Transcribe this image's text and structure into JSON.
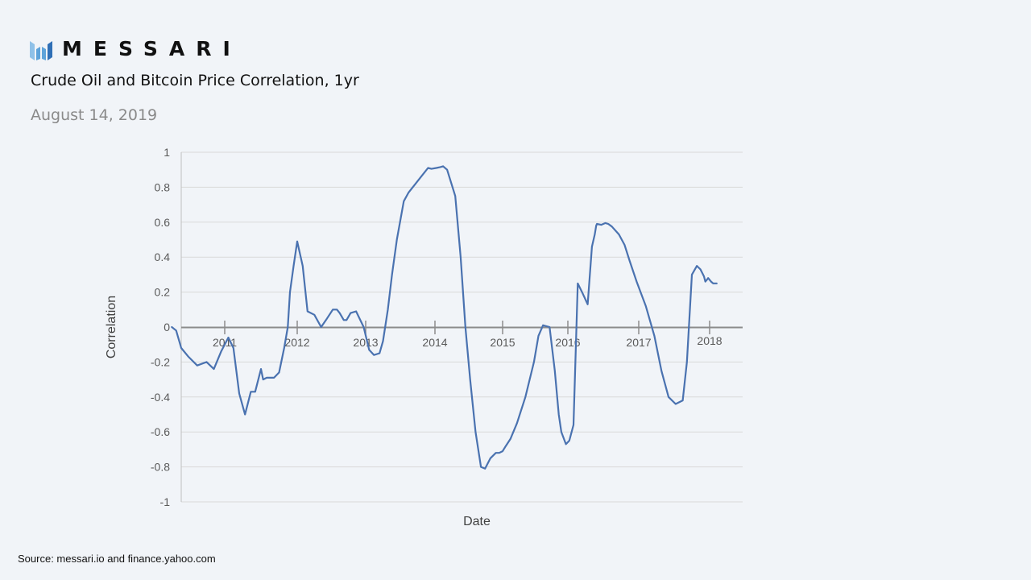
{
  "brand": {
    "name": "MESSARI",
    "logo_icon": "messari-m-logo-icon",
    "colors": [
      "#8fc1e8",
      "#5ea3da",
      "#2f6fb6"
    ]
  },
  "header": {
    "title": "Crude Oil and Bitcoin Price Correlation, 1yr",
    "date": "August 14, 2019"
  },
  "footer": {
    "source": "Source: messari.io and finance.yahoo.com"
  },
  "chart_data": {
    "type": "line",
    "title": "Crude Oil and Bitcoin Price Correlation, 1yr",
    "xlabel": "Date",
    "ylabel": "Correlation",
    "ylim": [
      -1,
      1
    ],
    "yticks": [
      1,
      0.8,
      0.6,
      0.4,
      0.2,
      0,
      -0.2,
      -0.4,
      -0.6,
      -0.8,
      -1
    ],
    "ytick_labels": [
      "1",
      "0.8",
      "0.6",
      "0.4",
      "0.2",
      "0",
      "-0.2",
      "-0.4",
      "-0.6",
      "-0.8",
      "-1"
    ],
    "xticks": [
      "2011",
      "2012",
      "2013",
      "2014",
      "2015",
      "2016",
      "2017",
      "2018"
    ],
    "grid": true,
    "legend": null,
    "line_color": "#4a72b0",
    "series": [
      {
        "name": "Correlation",
        "x": [
          2010.27,
          2010.33,
          2010.4,
          2010.5,
          2010.62,
          2010.75,
          2010.85,
          2010.95,
          2011.05,
          2011.12,
          2011.2,
          2011.28,
          2011.36,
          2011.42,
          2011.5,
          2011.53,
          2011.58,
          2011.68,
          2011.75,
          2011.82,
          2011.87,
          2011.9,
          2011.95,
          2012.0,
          2012.08,
          2012.15,
          2012.25,
          2012.35,
          2012.42,
          2012.52,
          2012.58,
          2012.62,
          2012.68,
          2012.72,
          2012.78,
          2012.86,
          2012.97,
          2013.05,
          2013.12,
          2013.2,
          2013.25,
          2013.32,
          2013.38,
          2013.45,
          2013.55,
          2013.62,
          2013.72,
          2013.82,
          2013.9,
          2013.95,
          2014.02,
          2014.08,
          2014.12,
          2014.18,
          2014.3,
          2014.38,
          2014.45,
          2014.52,
          2014.6,
          2014.68,
          2014.74,
          2014.82,
          2014.9,
          2014.95,
          2015.0,
          2015.05,
          2015.12,
          2015.22,
          2015.35,
          2015.48,
          2015.55,
          2015.62,
          2015.72,
          2015.8,
          2015.86,
          2015.9,
          2015.97,
          2016.02,
          2016.08,
          2016.14,
          2016.2,
          2016.28,
          2016.34,
          2016.38,
          2016.4,
          2016.41,
          2016.47,
          2016.53,
          2016.57,
          2016.62,
          2016.72,
          2016.8,
          2016.87,
          2016.97,
          2017.1,
          2017.22,
          2017.32,
          2017.42,
          2017.52,
          2017.62,
          2017.68,
          2017.75,
          2017.82,
          2017.87,
          2017.92,
          2017.94,
          2017.96,
          2017.98,
          2018.02,
          2018.05,
          2018.1
        ],
        "values": [
          0.0,
          -0.02,
          -0.12,
          -0.17,
          -0.22,
          -0.2,
          -0.24,
          -0.14,
          -0.06,
          -0.12,
          -0.38,
          -0.5,
          -0.37,
          -0.37,
          -0.24,
          -0.3,
          -0.29,
          -0.29,
          -0.26,
          -0.12,
          0.0,
          0.2,
          0.35,
          0.49,
          0.35,
          0.09,
          0.07,
          0.0,
          0.04,
          0.1,
          0.1,
          0.08,
          0.04,
          0.04,
          0.08,
          0.09,
          0.0,
          -0.13,
          -0.16,
          -0.15,
          -0.08,
          0.1,
          0.3,
          0.5,
          0.72,
          0.77,
          0.82,
          0.87,
          0.91,
          0.905,
          0.91,
          0.915,
          0.92,
          0.9,
          0.75,
          0.4,
          0.0,
          -0.3,
          -0.6,
          -0.8,
          -0.81,
          -0.75,
          -0.72,
          -0.72,
          -0.71,
          -0.68,
          -0.64,
          -0.55,
          -0.4,
          -0.2,
          -0.05,
          0.01,
          0.0,
          -0.25,
          -0.5,
          -0.6,
          -0.67,
          -0.65,
          -0.56,
          0.25,
          0.2,
          0.13,
          0.46,
          0.53,
          0.58,
          0.59,
          0.585,
          0.595,
          0.59,
          0.575,
          0.53,
          0.47,
          0.38,
          0.26,
          0.12,
          -0.05,
          -0.25,
          -0.4,
          -0.44,
          -0.42,
          -0.2,
          0.3,
          0.35,
          0.33,
          0.29,
          0.26,
          0.27,
          0.28,
          0.26,
          0.25,
          0.25
        ]
      }
    ]
  }
}
